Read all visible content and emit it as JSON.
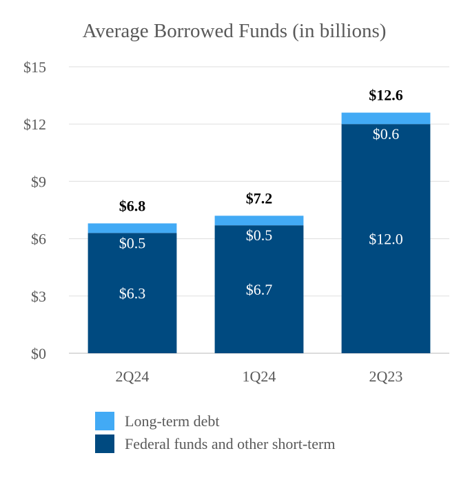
{
  "chart_data": {
    "type": "bar",
    "stacked": true,
    "title": "Average Borrowed Funds (in billions)",
    "categories": [
      "2Q24",
      "1Q24",
      "2Q23"
    ],
    "series": [
      {
        "name": "Federal funds and other short-term",
        "color": "#004a80",
        "values": [
          6.3,
          6.7,
          12.0
        ],
        "labels": [
          "$6.3",
          "$6.7",
          "$12.0"
        ]
      },
      {
        "name": "Long-term debt",
        "color": "#42aaf5",
        "values": [
          0.5,
          0.5,
          0.6
        ],
        "labels": [
          "$0.5",
          "$0.5",
          "$0.6"
        ]
      }
    ],
    "totals": [
      6.8,
      7.2,
      12.6
    ],
    "total_labels": [
      "$6.8",
      "$7.2",
      "$12.6"
    ],
    "ylim": [
      0,
      15
    ],
    "yticks": [
      0,
      3,
      6,
      9,
      12,
      15
    ],
    "ytick_labels": [
      "$0",
      "$3",
      "$6",
      "$9",
      "$12",
      "$15"
    ],
    "grid": true,
    "legend_position": "bottom",
    "legend": [
      {
        "label": "Long-term debt",
        "color": "#42aaf5"
      },
      {
        "label": "Federal funds and other short-term",
        "color": "#004a80"
      }
    ]
  }
}
